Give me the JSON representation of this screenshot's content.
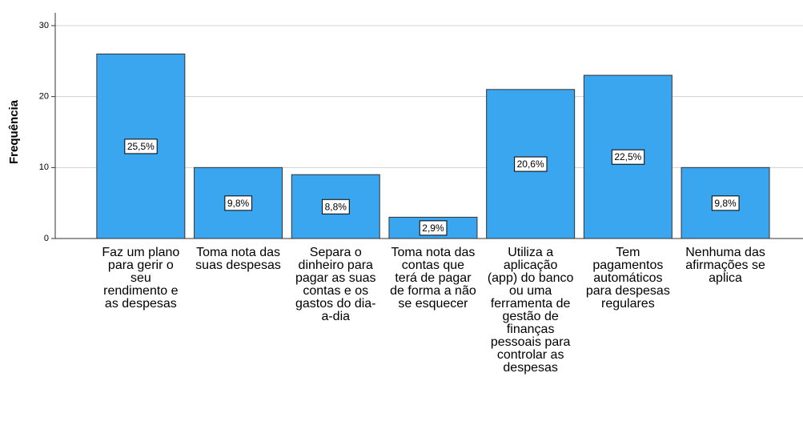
{
  "chart_data": {
    "type": "bar",
    "ylabel": "Frequência",
    "categories": [
      "Faz um plano para gerir o seu rendimento e as despesas",
      "Toma nota das suas despesas",
      "Separa o dinheiro para pagar as suas contas e os gastos do dia-a-dia",
      "Toma nota das contas que terá de pagar de forma a não se esquecer",
      "Utiliza a aplicação (app) do banco ou uma ferramenta de gestão de finanças pessoais para controlar as despesas",
      "Tem pagamentos automáticos para despesas regulares",
      "Nenhuma das afirmações se aplica"
    ],
    "values": [
      26,
      10,
      9,
      3,
      21,
      23,
      10
    ],
    "data_labels": [
      {
        "value": 25.5,
        "label": "25,5%"
      },
      {
        "value": 9.8,
        "label": "9,8%"
      },
      {
        "value": 8.8,
        "label": "8,8%"
      },
      {
        "value": 2.9,
        "label": "2,9%"
      },
      {
        "value": 20.6,
        "label": "20,6%"
      },
      {
        "value": 22.5,
        "label": "22,5%"
      },
      {
        "value": 9.8,
        "label": "9,8%"
      }
    ],
    "color": "#3ba6f0",
    "ylim": [
      0,
      30
    ],
    "yticks": [
      0,
      10,
      20,
      30
    ],
    "grid": true
  }
}
